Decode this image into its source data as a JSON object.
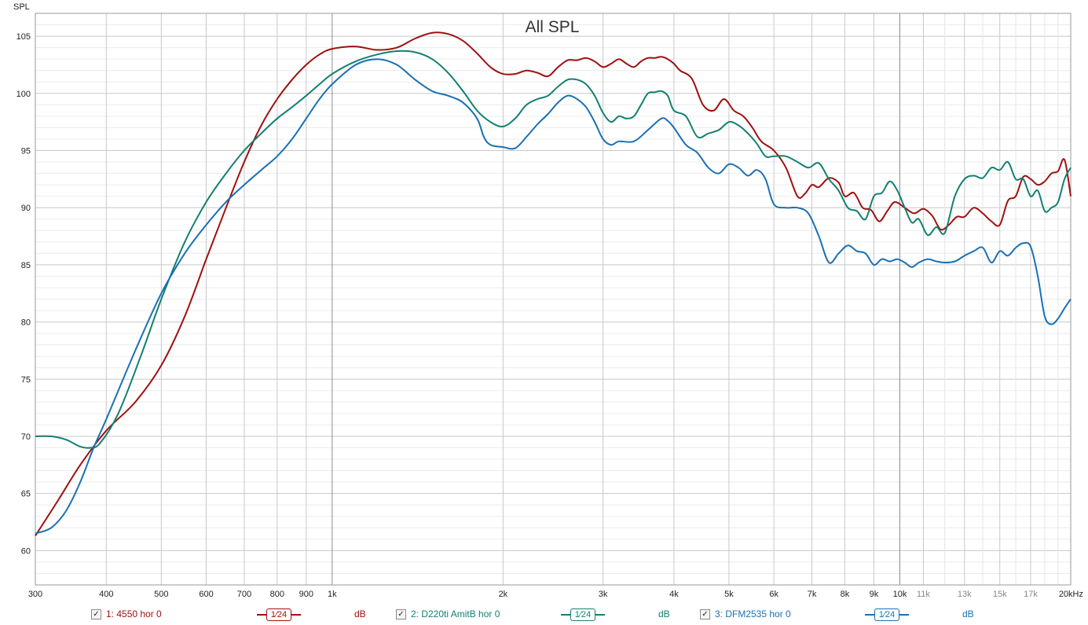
{
  "chart_data": {
    "type": "line",
    "title": "All SPL",
    "ylabel": "SPL",
    "xlabel": "",
    "xscale": "log",
    "xlim": [
      300,
      20000
    ],
    "ylim": [
      57,
      107
    ],
    "grid": true,
    "y_ticks": [
      60,
      65,
      70,
      75,
      80,
      85,
      90,
      95,
      100,
      105
    ],
    "x_ticks": [
      {
        "v": 300,
        "label": "300"
      },
      {
        "v": 400,
        "label": "400"
      },
      {
        "v": 500,
        "label": "500"
      },
      {
        "v": 600,
        "label": "600"
      },
      {
        "v": 700,
        "label": "700"
      },
      {
        "v": 800,
        "label": "800"
      },
      {
        "v": 900,
        "label": "900"
      },
      {
        "v": 1000,
        "label": "1k"
      },
      {
        "v": 2000,
        "label": "2k"
      },
      {
        "v": 3000,
        "label": "3k"
      },
      {
        "v": 4000,
        "label": "4k"
      },
      {
        "v": 5000,
        "label": "5k"
      },
      {
        "v": 6000,
        "label": "6k"
      },
      {
        "v": 7000,
        "label": "7k"
      },
      {
        "v": 8000,
        "label": "8k"
      },
      {
        "v": 9000,
        "label": "9k"
      },
      {
        "v": 10000,
        "label": "10k"
      },
      {
        "v": 11000,
        "label": "11k"
      },
      {
        "v": 13000,
        "label": "13k"
      },
      {
        "v": 15000,
        "label": "15k"
      },
      {
        "v": 17000,
        "label": "17k"
      },
      {
        "v": 20000,
        "label": "20kHz"
      }
    ],
    "series": [
      {
        "name": "1: 4550 hor 0",
        "color": "#a01010",
        "points": [
          [
            300,
            61.3
          ],
          [
            330,
            64.5
          ],
          [
            360,
            67.5
          ],
          [
            400,
            70.5
          ],
          [
            450,
            73
          ],
          [
            500,
            76.2
          ],
          [
            550,
            80.5
          ],
          [
            600,
            85.5
          ],
          [
            650,
            90
          ],
          [
            700,
            94
          ],
          [
            750,
            97.2
          ],
          [
            800,
            99.5
          ],
          [
            850,
            101.2
          ],
          [
            900,
            102.5
          ],
          [
            950,
            103.4
          ],
          [
            1000,
            103.9
          ],
          [
            1100,
            104.1
          ],
          [
            1200,
            103.8
          ],
          [
            1300,
            104
          ],
          [
            1400,
            104.8
          ],
          [
            1500,
            105.3
          ],
          [
            1600,
            105.2
          ],
          [
            1700,
            104.6
          ],
          [
            1800,
            103.5
          ],
          [
            1900,
            102.3
          ],
          [
            2000,
            101.7
          ],
          [
            2100,
            101.7
          ],
          [
            2200,
            102
          ],
          [
            2300,
            101.8
          ],
          [
            2400,
            101.5
          ],
          [
            2500,
            102.3
          ],
          [
            2600,
            102.9
          ],
          [
            2700,
            102.9
          ],
          [
            2800,
            103.1
          ],
          [
            2900,
            102.8
          ],
          [
            3000,
            102.3
          ],
          [
            3100,
            102.6
          ],
          [
            3200,
            103
          ],
          [
            3300,
            102.6
          ],
          [
            3400,
            102.3
          ],
          [
            3500,
            102.8
          ],
          [
            3600,
            103.1
          ],
          [
            3700,
            103.1
          ],
          [
            3800,
            103.2
          ],
          [
            3900,
            103
          ],
          [
            4000,
            102.6
          ],
          [
            4100,
            102
          ],
          [
            4300,
            101.3
          ],
          [
            4500,
            99
          ],
          [
            4700,
            98.5
          ],
          [
            4900,
            99.5
          ],
          [
            5100,
            98.5
          ],
          [
            5300,
            98
          ],
          [
            5500,
            97
          ],
          [
            5700,
            95.8
          ],
          [
            6000,
            95
          ],
          [
            6300,
            93.5
          ],
          [
            6600,
            91
          ],
          [
            6800,
            91.2
          ],
          [
            7000,
            92
          ],
          [
            7200,
            91.8
          ],
          [
            7500,
            92.6
          ],
          [
            7800,
            92.2
          ],
          [
            8000,
            91
          ],
          [
            8300,
            91.3
          ],
          [
            8600,
            90
          ],
          [
            8900,
            89.8
          ],
          [
            9200,
            88.8
          ],
          [
            9500,
            89.7
          ],
          [
            9800,
            90.5
          ],
          [
            10200,
            90
          ],
          [
            10600,
            89.5
          ],
          [
            11000,
            89.9
          ],
          [
            11400,
            89.3
          ],
          [
            11800,
            88.1
          ],
          [
            12200,
            88.5
          ],
          [
            12600,
            89.2
          ],
          [
            13000,
            89.2
          ],
          [
            13500,
            90
          ],
          [
            14000,
            89.5
          ],
          [
            14500,
            88.8
          ],
          [
            15000,
            88.5
          ],
          [
            15500,
            90.6
          ],
          [
            16000,
            91
          ],
          [
            16500,
            92.7
          ],
          [
            17000,
            92.5
          ],
          [
            17500,
            92
          ],
          [
            18000,
            92.3
          ],
          [
            18500,
            93
          ],
          [
            19000,
            93.2
          ],
          [
            19500,
            94.2
          ],
          [
            20000,
            91
          ]
        ]
      },
      {
        "name": "2: D220ti AmitB hor 0",
        "color": "#128070",
        "points": [
          [
            300,
            70
          ],
          [
            320,
            70
          ],
          [
            340,
            69.7
          ],
          [
            360,
            69.1
          ],
          [
            375,
            69
          ],
          [
            390,
            69.4
          ],
          [
            420,
            72
          ],
          [
            460,
            77
          ],
          [
            500,
            82
          ],
          [
            550,
            87
          ],
          [
            600,
            90.5
          ],
          [
            650,
            93
          ],
          [
            700,
            95
          ],
          [
            750,
            96.5
          ],
          [
            800,
            97.8
          ],
          [
            850,
            98.8
          ],
          [
            900,
            99.8
          ],
          [
            950,
            100.8
          ],
          [
            1000,
            101.7
          ],
          [
            1100,
            102.8
          ],
          [
            1200,
            103.4
          ],
          [
            1300,
            103.7
          ],
          [
            1400,
            103.6
          ],
          [
            1500,
            103
          ],
          [
            1600,
            101.8
          ],
          [
            1700,
            100.2
          ],
          [
            1800,
            98.5
          ],
          [
            1900,
            97.5
          ],
          [
            2000,
            97.1
          ],
          [
            2100,
            97.8
          ],
          [
            2200,
            99
          ],
          [
            2300,
            99.5
          ],
          [
            2400,
            99.8
          ],
          [
            2500,
            100.6
          ],
          [
            2600,
            101.2
          ],
          [
            2700,
            101.2
          ],
          [
            2800,
            100.8
          ],
          [
            2900,
            99.8
          ],
          [
            3000,
            98.3
          ],
          [
            3100,
            97.5
          ],
          [
            3200,
            98
          ],
          [
            3300,
            97.8
          ],
          [
            3400,
            98
          ],
          [
            3500,
            99
          ],
          [
            3600,
            100
          ],
          [
            3700,
            100.1
          ],
          [
            3800,
            100.2
          ],
          [
            3900,
            99.8
          ],
          [
            4000,
            98.5
          ],
          [
            4200,
            98
          ],
          [
            4400,
            96.2
          ],
          [
            4600,
            96.5
          ],
          [
            4800,
            96.8
          ],
          [
            5000,
            97.5
          ],
          [
            5200,
            97.2
          ],
          [
            5400,
            96.5
          ],
          [
            5600,
            95.6
          ],
          [
            5800,
            94.5
          ],
          [
            6000,
            94.5
          ],
          [
            6300,
            94.5
          ],
          [
            6600,
            94
          ],
          [
            6900,
            93.5
          ],
          [
            7200,
            93.9
          ],
          [
            7500,
            92.5
          ],
          [
            7800,
            91.5
          ],
          [
            8100,
            90
          ],
          [
            8400,
            89.7
          ],
          [
            8700,
            89
          ],
          [
            9000,
            91
          ],
          [
            9300,
            91.3
          ],
          [
            9600,
            92.3
          ],
          [
            9900,
            91.5
          ],
          [
            10200,
            90
          ],
          [
            10500,
            88.7
          ],
          [
            10800,
            89
          ],
          [
            11200,
            87.6
          ],
          [
            11600,
            88.3
          ],
          [
            12000,
            87.8
          ],
          [
            12500,
            91
          ],
          [
            13000,
            92.5
          ],
          [
            13500,
            92.8
          ],
          [
            14000,
            92.6
          ],
          [
            14500,
            93.5
          ],
          [
            15000,
            93.3
          ],
          [
            15500,
            94
          ],
          [
            16000,
            92.5
          ],
          [
            16500,
            92.5
          ],
          [
            17000,
            91
          ],
          [
            17500,
            91.5
          ],
          [
            18000,
            89.7
          ],
          [
            18500,
            90
          ],
          [
            19000,
            90.5
          ],
          [
            19500,
            92.5
          ],
          [
            20000,
            93.5
          ]
        ]
      },
      {
        "name": "3: DFM2535 hor 0",
        "color": "#1a70b4",
        "points": [
          [
            300,
            61.5
          ],
          [
            320,
            62
          ],
          [
            340,
            63.5
          ],
          [
            360,
            66
          ],
          [
            380,
            69
          ],
          [
            400,
            71.5
          ],
          [
            450,
            77.5
          ],
          [
            500,
            82.5
          ],
          [
            550,
            86
          ],
          [
            600,
            88.5
          ],
          [
            650,
            90.5
          ],
          [
            700,
            92
          ],
          [
            750,
            93.3
          ],
          [
            800,
            94.5
          ],
          [
            850,
            96
          ],
          [
            900,
            97.8
          ],
          [
            950,
            99.5
          ],
          [
            1000,
            100.8
          ],
          [
            1100,
            102.5
          ],
          [
            1200,
            103
          ],
          [
            1300,
            102.5
          ],
          [
            1400,
            101.2
          ],
          [
            1500,
            100.2
          ],
          [
            1600,
            99.8
          ],
          [
            1700,
            99.2
          ],
          [
            1800,
            97.8
          ],
          [
            1850,
            96.2
          ],
          [
            1900,
            95.5
          ],
          [
            2000,
            95.3
          ],
          [
            2100,
            95.2
          ],
          [
            2200,
            96.2
          ],
          [
            2300,
            97.3
          ],
          [
            2400,
            98.2
          ],
          [
            2500,
            99.2
          ],
          [
            2600,
            99.8
          ],
          [
            2700,
            99.5
          ],
          [
            2800,
            98.8
          ],
          [
            2900,
            97.5
          ],
          [
            3000,
            96
          ],
          [
            3100,
            95.5
          ],
          [
            3200,
            95.8
          ],
          [
            3400,
            95.8
          ],
          [
            3600,
            96.8
          ],
          [
            3800,
            97.8
          ],
          [
            3900,
            97.6
          ],
          [
            4000,
            97
          ],
          [
            4200,
            95.5
          ],
          [
            4400,
            94.8
          ],
          [
            4600,
            93.5
          ],
          [
            4800,
            93
          ],
          [
            5000,
            93.8
          ],
          [
            5200,
            93.5
          ],
          [
            5400,
            92.8
          ],
          [
            5600,
            93.3
          ],
          [
            5800,
            92.5
          ],
          [
            6000,
            90.3
          ],
          [
            6300,
            90
          ],
          [
            6600,
            90
          ],
          [
            6900,
            89.5
          ],
          [
            7200,
            87.5
          ],
          [
            7500,
            85.2
          ],
          [
            7800,
            86
          ],
          [
            8100,
            86.7
          ],
          [
            8400,
            86.2
          ],
          [
            8700,
            86
          ],
          [
            9000,
            85
          ],
          [
            9300,
            85.5
          ],
          [
            9600,
            85.3
          ],
          [
            9900,
            85.5
          ],
          [
            10200,
            85.2
          ],
          [
            10500,
            84.8
          ],
          [
            10800,
            85.2
          ],
          [
            11200,
            85.5
          ],
          [
            11600,
            85.3
          ],
          [
            12000,
            85.2
          ],
          [
            12500,
            85.3
          ],
          [
            13000,
            85.8
          ],
          [
            13500,
            86.2
          ],
          [
            14000,
            86.5
          ],
          [
            14500,
            85.2
          ],
          [
            15000,
            86.2
          ],
          [
            15500,
            85.8
          ],
          [
            16000,
            86.5
          ],
          [
            16500,
            86.9
          ],
          [
            17000,
            86.6
          ],
          [
            17500,
            84
          ],
          [
            18000,
            80.5
          ],
          [
            18500,
            79.8
          ],
          [
            19000,
            80.3
          ],
          [
            19500,
            81.2
          ],
          [
            20000,
            82
          ]
        ]
      }
    ]
  },
  "legend": [
    {
      "label": "1: 4550 hor 0",
      "smoothing": "1⁄24",
      "unit": "dB",
      "checked": "✓",
      "color": "#a01010"
    },
    {
      "label": "2: D220ti AmitB hor 0",
      "smoothing": "1⁄24",
      "unit": "dB",
      "checked": "✓",
      "color": "#128070"
    },
    {
      "label": "3: DFM2535 hor 0",
      "smoothing": "1⁄24",
      "unit": "dB",
      "checked": "✓",
      "color": "#1a70b4"
    }
  ]
}
